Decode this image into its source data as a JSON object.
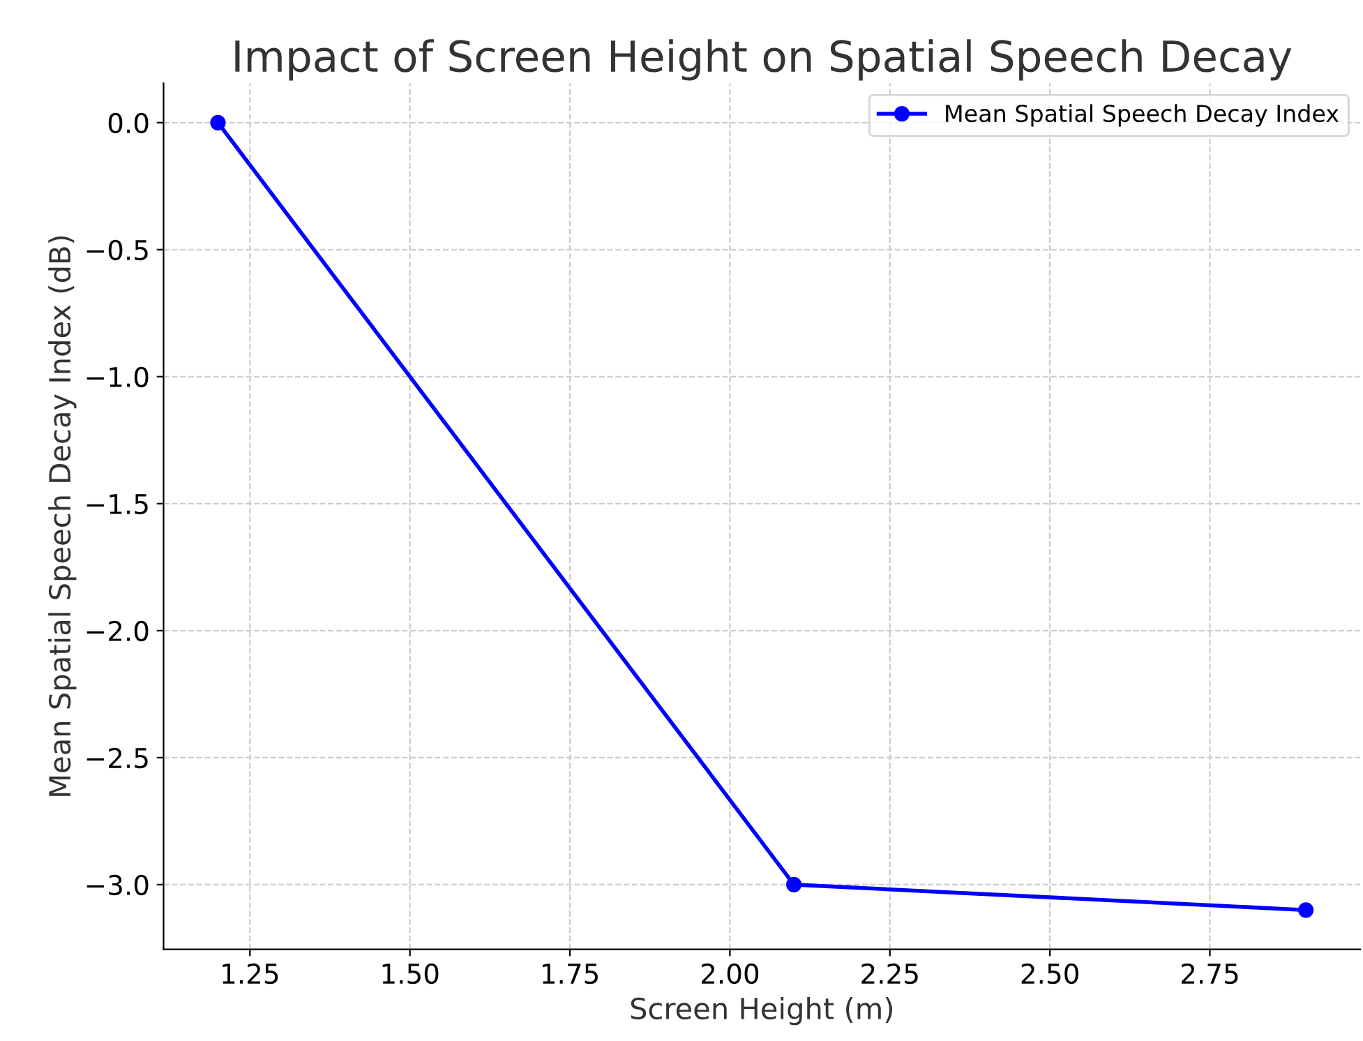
{
  "chart_data": {
    "type": "line",
    "title": "Impact of Screen Height on Spatial Speech Decay",
    "xlabel": "Screen Height (m)",
    "ylabel": "Mean Spatial Speech Decay Index (dB)",
    "x": [
      1.2,
      2.1,
      2.9
    ],
    "series": [
      {
        "name": "Mean Spatial Speech Decay Index",
        "color": "#0000ff",
        "values": [
          0.0,
          -3.0,
          -3.1
        ]
      }
    ],
    "xlim": [
      1.115,
      2.985
    ],
    "xticks": [
      {
        "value": 1.25,
        "label": "1.25"
      },
      {
        "value": 1.5,
        "label": "1.50"
      },
      {
        "value": 1.75,
        "label": "1.75"
      },
      {
        "value": 2.0,
        "label": "2.00"
      },
      {
        "value": 2.25,
        "label": "2.25"
      },
      {
        "value": 2.5,
        "label": "2.50"
      },
      {
        "value": 2.75,
        "label": "2.75"
      }
    ],
    "ylim": [
      -3.255,
      0.155
    ],
    "yticks": [
      {
        "value": 0,
        "label": "0.0"
      },
      {
        "value": -0.5,
        "label": "−0.5"
      },
      {
        "value": -1,
        "label": "−1.0"
      },
      {
        "value": -1.5,
        "label": "−1.5"
      },
      {
        "value": -2,
        "label": "−2.0"
      },
      {
        "value": -2.5,
        "label": "−2.5"
      },
      {
        "value": -3,
        "label": "−3.0"
      }
    ],
    "grid": true,
    "legend": "top right",
    "marker": "circle",
    "line_style": "solid"
  }
}
